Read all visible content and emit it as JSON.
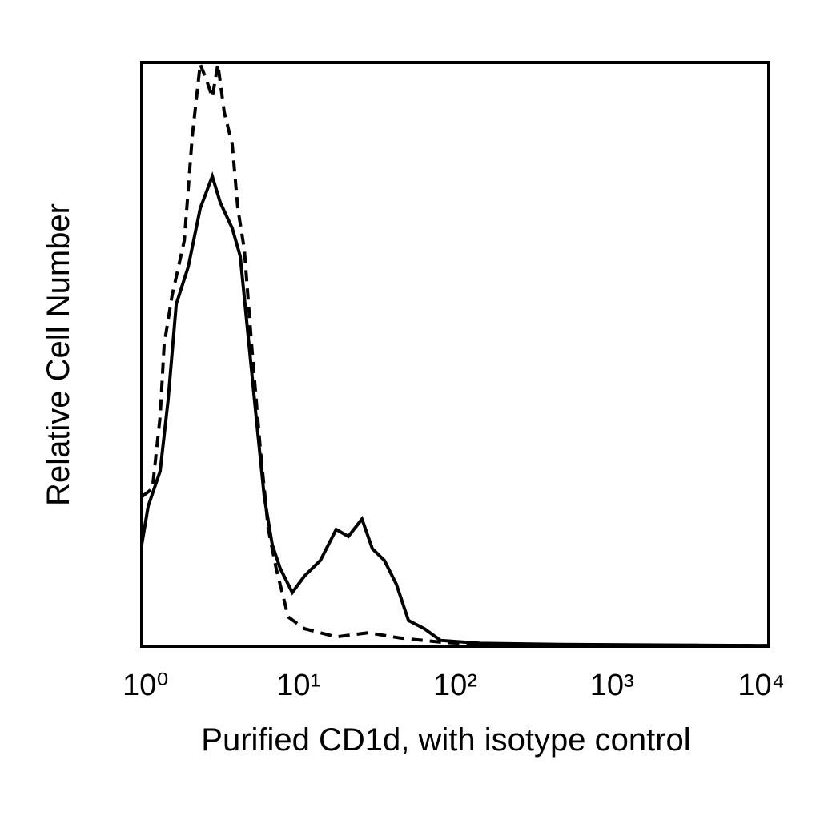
{
  "chart_data": {
    "type": "line",
    "xlabel": "Purified CD1d, with isotype control",
    "ylabel": "Relative Cell Number",
    "xscale": "log",
    "xlim": [
      1,
      10000
    ],
    "xticks": [
      {
        "value": 1,
        "label": "10⁰"
      },
      {
        "value": 10,
        "label": "10¹"
      },
      {
        "value": 100,
        "label": "10²"
      },
      {
        "value": 1000,
        "label": "10³"
      },
      {
        "value": 10000,
        "label": "10⁴"
      }
    ],
    "ylim": [
      0,
      100
    ],
    "series": [
      {
        "color": "#000000",
        "line_style": "solid",
        "x": [
          1,
          1.1,
          1.31,
          1.47,
          1.66,
          1.98,
          2.36,
          2.82,
          3.17,
          3.78,
          4.25,
          4.78,
          5.38,
          6.05,
          6.8,
          7.65,
          9.13,
          10.9,
          13.8,
          17.4,
          20.8,
          25.4,
          29.6,
          35.3,
          42.1,
          50.3,
          63.5,
          80.5,
          145,
          470,
          10000
        ],
        "values": [
          17.4,
          24,
          30,
          42,
          58.6,
          65,
          75,
          80.5,
          76,
          71.6,
          66.8,
          53,
          39,
          25.6,
          17.4,
          13.3,
          9.2,
          12,
          14.7,
          20,
          18.8,
          21.8,
          16.7,
          14.7,
          10.6,
          4.4,
          3,
          1,
          0.5,
          0.3,
          0.1
        ]
      },
      {
        "color": "#000000",
        "line_style": "dashed",
        "x": [
          1,
          1.17,
          1.31,
          1.39,
          1.56,
          1.87,
          2.1,
          2.36,
          2.59,
          2.82,
          3.06,
          3.36,
          3.78,
          4.1,
          4.51,
          5.07,
          5.7,
          6.41,
          7.21,
          8.61,
          10.9,
          17.4,
          27.9,
          44.7,
          80.5,
          145,
          10000
        ],
        "values": [
          25.6,
          27,
          39.4,
          51.7,
          60,
          69.5,
          87.4,
          99.7,
          97,
          94,
          99.7,
          91.5,
          86,
          75,
          68,
          50.3,
          33.9,
          20.2,
          13.3,
          5,
          3,
          1.6,
          2.3,
          1.4,
          0.7,
          0.3,
          0.1
        ]
      }
    ]
  }
}
